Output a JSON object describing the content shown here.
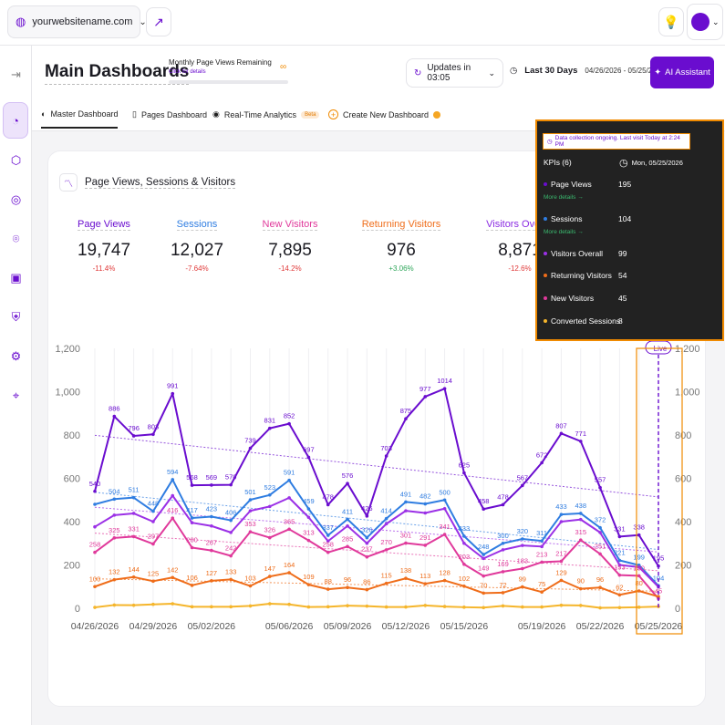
{
  "topbar": {
    "site": "yourwebsitename.com"
  },
  "header": {
    "title": "Main Dashboards",
    "page_views_title": "Monthly Page Views Remaining",
    "page_views_link": "Click for details",
    "page_views_value": "∞",
    "updates": "Updates in 03:05",
    "range_label": "Last 30 Days",
    "range_dates": "04/26/2026 - 05/25/2026",
    "ai_label": "AI Assistant"
  },
  "tabs": [
    {
      "label": "Master Dashboard"
    },
    {
      "label": "Pages Dashboard"
    },
    {
      "label": "Real-Time Analytics",
      "badge": "Beta"
    },
    {
      "label": "Create New Dashboard"
    }
  ],
  "card": {
    "title": "Page Views, Sessions & Visitors",
    "kpis": [
      {
        "name": "Page Views",
        "value": "19,747",
        "change": "-11.4%",
        "color": "#6a0dcf",
        "change_color": "#e03b3b"
      },
      {
        "name": "Sessions",
        "value": "12,027",
        "change": "-7.64%",
        "color": "#2f7de1",
        "change_color": "#e03b3b"
      },
      {
        "name": "New Visitors",
        "value": "7,895",
        "change": "-14.2%",
        "color": "#e0399b",
        "change_color": "#e03b3b"
      },
      {
        "name": "Returning Visitors",
        "value": "976",
        "change": "+3.06%",
        "color": "#ef6d1a",
        "change_color": "#2ea65a"
      },
      {
        "name": "Visitors Overall",
        "value": "8,871",
        "change": "-12.6%",
        "color": "#8a2be2",
        "change_color": "#e03b3b"
      }
    ]
  },
  "popup": {
    "note": "Data collection ongoing. Last visit Today at 2:24 PM",
    "kpis_label": "KPIs (6)",
    "date": "Mon, 05/25/2026",
    "more": "More details →",
    "rows": [
      {
        "name": "Page Views",
        "value": "195",
        "color": "#6a0dcf"
      },
      {
        "name": "Sessions",
        "value": "104",
        "color": "#2f7de1"
      },
      {
        "name": "Visitors Overall",
        "value": "99",
        "color": "#9b30e6"
      },
      {
        "name": "Returning Visitors",
        "value": "54",
        "color": "#ef6d1a"
      },
      {
        "name": "New Visitors",
        "value": "45",
        "color": "#e0399b"
      },
      {
        "name": "Converted Sessions",
        "value": "8",
        "color": "#f5b52b"
      }
    ]
  },
  "chart_data": {
    "type": "line",
    "x": [
      "04/26",
      "04/27",
      "04/28",
      "04/29",
      "04/30",
      "05/01",
      "05/02",
      "05/03",
      "05/04",
      "05/05",
      "05/06",
      "05/07",
      "05/08",
      "05/09",
      "05/10",
      "05/11",
      "05/12",
      "05/13",
      "05/14",
      "05/15",
      "05/16",
      "05/17",
      "05/18",
      "05/19",
      "05/20",
      "05/21",
      "05/22",
      "05/23",
      "05/24",
      "05/25"
    ],
    "x_tick_labels": [
      "04/26/2026",
      "04/29/2026",
      "05/02/2026",
      "05/06/2026",
      "05/09/2026",
      "05/12/2026",
      "05/15/2026",
      "05/19/2026",
      "05/22/2026",
      "05/25/2026"
    ],
    "ylim": [
      0,
      1200
    ],
    "y_ticks": [
      "0",
      "200",
      "400",
      "600",
      "800",
      "1,000",
      "1,200"
    ],
    "live_label": "Live",
    "series": [
      {
        "name": "Page Views",
        "color": "#6a0dcf",
        "values": [
          540,
          886,
          796,
          803,
          991,
          568,
          569,
          570,
          739,
          831,
          852,
          697,
          478,
          576,
          426,
          703,
          875,
          977,
          1014,
          625,
          458,
          478,
          567,
          672,
          807,
          771,
          557,
          331,
          338,
          195
        ]
      },
      {
        "name": "Sessions",
        "color": "#2f7de1",
        "values": [
          480,
          504,
          511,
          448,
          594,
          417,
          423,
          406,
          501,
          523,
          591,
          459,
          337,
          411,
          326,
          414,
          491,
          482,
          500,
          333,
          248,
          300,
          320,
          311,
          433,
          438,
          372,
          221,
          199,
          104
        ]
      },
      {
        "name": "Visitors Overall",
        "color": "#9b30e6",
        "values": [
          376,
          430,
          438,
          400,
          520,
          395,
          380,
          350,
          450,
          470,
          510,
          420,
          310,
          380,
          300,
          390,
          450,
          440,
          460,
          300,
          230,
          270,
          290,
          285,
          400,
          410,
          350,
          200,
          190,
          99
        ]
      },
      {
        "name": "New Visitors",
        "color": "#e0399b",
        "values": [
          258,
          325,
          331,
          297,
          416,
          280,
          267,
          242,
          353,
          326,
          365,
          313,
          258,
          285,
          237,
          270,
          301,
          291,
          341,
          203,
          149,
          169,
          183,
          213,
          217,
          315,
          251,
          153,
          150,
          45
        ]
      },
      {
        "name": "Returning Visitors",
        "color": "#ef6d1a",
        "values": [
          100,
          132,
          144,
          125,
          142,
          106,
          127,
          133,
          103,
          147,
          164,
          109,
          88,
          96,
          86,
          115,
          138,
          113,
          128,
          102,
          70,
          72,
          99,
          75,
          129,
          90,
          96,
          62,
          80,
          54
        ]
      },
      {
        "name": "Converted Sessions",
        "color": "#f5b52b",
        "values": [
          4,
          15,
          14,
          18,
          21,
          7,
          7,
          7,
          11,
          21,
          18,
          6,
          7,
          12,
          10,
          6,
          6,
          13,
          8,
          5,
          3,
          11,
          6,
          6,
          14,
          13,
          2,
          3,
          5,
          8
        ]
      }
    ],
    "labels": {
      "Page Views": [
        540,
        886,
        796,
        803,
        991,
        568,
        569,
        570,
        739,
        831,
        852,
        697,
        478,
        576,
        426,
        703,
        875,
        977,
        1014,
        625,
        458,
        478,
        567,
        672,
        807,
        771,
        557,
        331,
        338,
        195
      ],
      "Sessions": [
        null,
        504,
        511,
        448,
        594,
        417,
        423,
        406,
        501,
        523,
        591,
        459,
        337,
        411,
        326,
        414,
        491,
        482,
        500,
        333,
        248,
        300,
        320,
        311,
        433,
        438,
        372,
        221,
        199,
        104
      ],
      "New Visitors": [
        258,
        325,
        331,
        297,
        416,
        280,
        267,
        242,
        353,
        326,
        365,
        313,
        258,
        285,
        237,
        270,
        301,
        291,
        341,
        203,
        149,
        169,
        183,
        213,
        217,
        315,
        251,
        153,
        150,
        45
      ],
      "Returning Visitors": [
        100,
        132,
        144,
        125,
        142,
        106,
        127,
        133,
        103,
        147,
        164,
        109,
        88,
        96,
        86,
        115,
        138,
        113,
        128,
        102,
        70,
        72,
        99,
        75,
        129,
        90,
        96,
        62,
        80,
        null
      ]
    }
  }
}
